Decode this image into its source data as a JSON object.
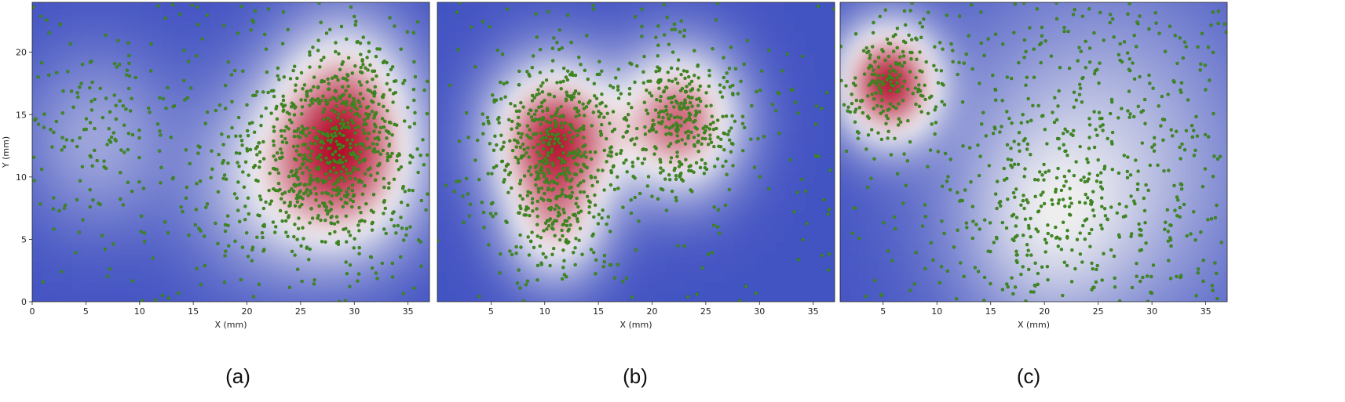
{
  "chart_data": [
    {
      "type": "scatter",
      "panel_label": "(a)",
      "xlabel": "X (mm)",
      "ylabel": "Y (mm)",
      "xlim": [
        0,
        37
      ],
      "ylim": [
        0,
        24
      ],
      "x_ticks": [
        0,
        5,
        10,
        15,
        20,
        25,
        30,
        35
      ],
      "y_ticks": [
        0,
        5,
        10,
        15,
        20
      ],
      "background": "kernel density heatmap",
      "density_peaks": [
        {
          "x": 29,
          "y": 11,
          "spread": 4.5,
          "strength": 1.0
        },
        {
          "x": 29,
          "y": 17,
          "spread": 4.0,
          "strength": 0.55
        },
        {
          "x": 22,
          "y": 10,
          "spread": 5.0,
          "strength": 0.35
        },
        {
          "x": 6,
          "y": 13,
          "spread": 4.5,
          "strength": 0.25
        }
      ],
      "point_count": 1100
    },
    {
      "type": "scatter",
      "panel_label": "(b)",
      "xlabel": "X (mm)",
      "ylabel": "",
      "xlim": [
        0,
        37
      ],
      "ylim": [
        0,
        24
      ],
      "x_ticks": [
        5,
        10,
        15,
        20,
        25,
        30,
        35
      ],
      "y_ticks": [],
      "background": "kernel density heatmap",
      "density_peaks": [
        {
          "x": 11,
          "y": 13,
          "spread": 3.8,
          "strength": 1.0
        },
        {
          "x": 22.5,
          "y": 14.5,
          "spread": 3.6,
          "strength": 0.8
        },
        {
          "x": 11,
          "y": 6,
          "spread": 3.0,
          "strength": 0.45
        }
      ],
      "point_count": 1050
    },
    {
      "type": "scatter",
      "panel_label": "(c)",
      "xlabel": "X (mm)",
      "ylabel": "",
      "xlim": [
        1,
        37
      ],
      "ylim": [
        0,
        24
      ],
      "x_ticks": [
        5,
        10,
        15,
        20,
        25,
        30,
        35
      ],
      "y_ticks": [],
      "background": "kernel density heatmap",
      "density_peaks": [
        {
          "x": 5.5,
          "y": 17.5,
          "spread": 3.0,
          "strength": 1.0
        },
        {
          "x": 25,
          "y": 11,
          "spread": 9.0,
          "strength": 0.3
        },
        {
          "x": 20,
          "y": 6,
          "spread": 5.0,
          "strength": 0.2
        }
      ],
      "point_count": 950
    }
  ],
  "colors": {
    "cold": "#3b4cc0",
    "neutral": "#f0f0f0",
    "hot": "#b40426",
    "points": "#3f8b22",
    "point_edge": "#2f6b14"
  }
}
